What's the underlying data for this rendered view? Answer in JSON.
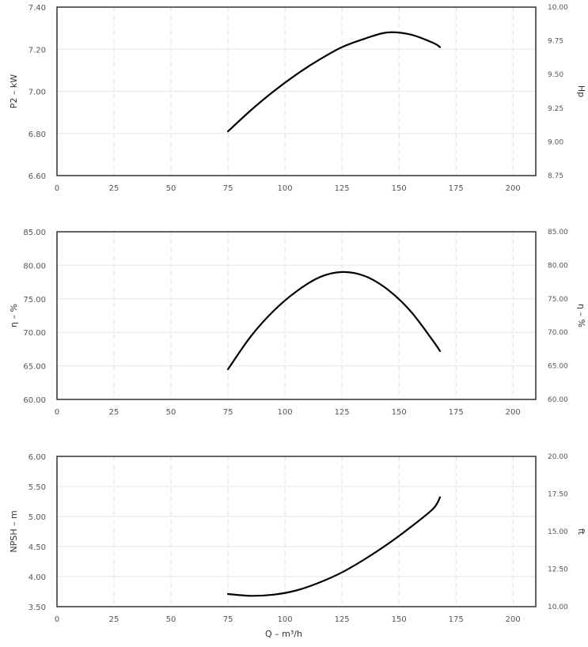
{
  "chart_data": [
    {
      "type": "line",
      "title": "",
      "xlabel": "",
      "ylabel": "P2 – kW",
      "ylabel_right": "Hp",
      "x_ticks": [
        "0",
        "25",
        "50",
        "75",
        "100",
        "125",
        "150",
        "175",
        "200"
      ],
      "xlim": [
        0,
        210
      ],
      "y_ticks": [
        "6.60",
        "6.80",
        "7.00",
        "7.20",
        "7.40"
      ],
      "ylim": [
        6.6,
        7.4
      ],
      "y2_ticks": [
        "8.75",
        "9.00",
        "9.25",
        "9.50",
        "9.75",
        "10.00"
      ],
      "y2lim": [
        8.75,
        10.0
      ],
      "grid": true,
      "series": [
        {
          "x": [
            75,
            85,
            95,
            105,
            115,
            125,
            135,
            145,
            155,
            165,
            168
          ],
          "y": [
            6.81,
            6.91,
            7.0,
            7.08,
            7.15,
            7.21,
            7.25,
            7.28,
            7.27,
            7.23,
            7.21
          ]
        }
      ]
    },
    {
      "type": "line",
      "title": "",
      "xlabel": "",
      "ylabel": "η – %",
      "ylabel_right": "η – %",
      "x_ticks": [
        "0",
        "25",
        "50",
        "75",
        "100",
        "125",
        "150",
        "175",
        "200"
      ],
      "xlim": [
        0,
        210
      ],
      "y_ticks": [
        "60.00",
        "65.00",
        "70.00",
        "75.00",
        "80.00",
        "85.00"
      ],
      "ylim": [
        60,
        85
      ],
      "y2_ticks": [
        "60.00",
        "65.00",
        "70.00",
        "75.00",
        "80.00",
        "85.00"
      ],
      "y2lim": [
        60,
        85
      ],
      "grid": true,
      "series": [
        {
          "x": [
            75,
            85,
            95,
            105,
            115,
            125,
            135,
            145,
            155,
            165,
            168
          ],
          "y": [
            64.5,
            69.4,
            73.2,
            76.1,
            78.2,
            79.0,
            78.4,
            76.4,
            73.2,
            68.7,
            67.2
          ]
        }
      ]
    },
    {
      "type": "line",
      "title": "",
      "xlabel": "Q – m³/h",
      "ylabel": "NPSH – m",
      "ylabel_right": "ft",
      "x_ticks": [
        "0",
        "25",
        "50",
        "75",
        "100",
        "125",
        "150",
        "175",
        "200"
      ],
      "xlim": [
        0,
        210
      ],
      "y_ticks": [
        "3.50",
        "4.00",
        "4.50",
        "5.00",
        "5.50",
        "6.00"
      ],
      "ylim": [
        3.5,
        6.0
      ],
      "y2_ticks": [
        "10.00",
        "12.50",
        "15.00",
        "17.50",
        "20.00"
      ],
      "y2lim": [
        10.0,
        20.0
      ],
      "grid": true,
      "series": [
        {
          "x": [
            75,
            85,
            95,
            105,
            115,
            125,
            135,
            145,
            155,
            165,
            168
          ],
          "y": [
            3.71,
            3.68,
            3.7,
            3.77,
            3.9,
            4.07,
            4.29,
            4.54,
            4.82,
            5.13,
            5.32
          ]
        }
      ]
    }
  ]
}
